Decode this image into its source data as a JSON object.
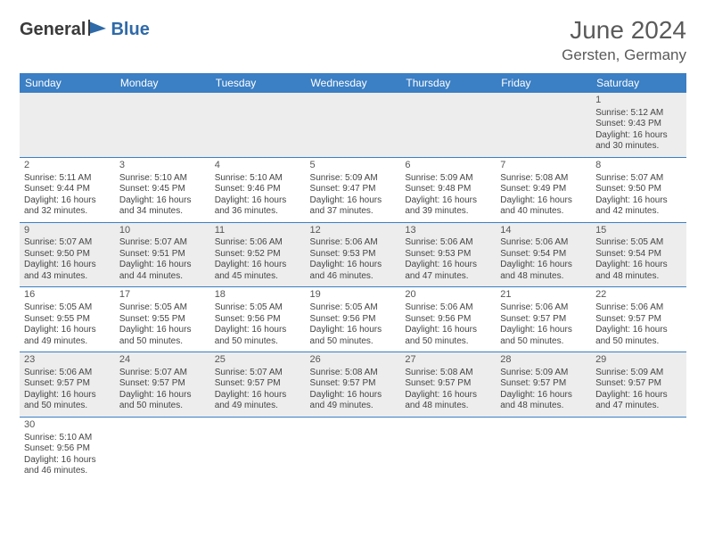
{
  "brand": {
    "part1": "General",
    "part2": "Blue"
  },
  "title": "June 2024",
  "location": "Gersten, Germany",
  "colors": {
    "header_bg": "#3b7fc4",
    "header_fg": "#ffffff",
    "row_alt_bg": "#ededed",
    "row_bg": "#ffffff",
    "border": "#3b7fc4",
    "text": "#444444",
    "title_color": "#5a5a5a",
    "brand_gray": "#3a3a3a",
    "brand_blue": "#2f6aa8"
  },
  "day_headers": [
    "Sunday",
    "Monday",
    "Tuesday",
    "Wednesday",
    "Thursday",
    "Friday",
    "Saturday"
  ],
  "weeks": [
    [
      null,
      null,
      null,
      null,
      null,
      null,
      {
        "n": "1",
        "sr": "Sunrise: 5:12 AM",
        "ss": "Sunset: 9:43 PM",
        "dl1": "Daylight: 16 hours",
        "dl2": "and 30 minutes."
      }
    ],
    [
      {
        "n": "2",
        "sr": "Sunrise: 5:11 AM",
        "ss": "Sunset: 9:44 PM",
        "dl1": "Daylight: 16 hours",
        "dl2": "and 32 minutes."
      },
      {
        "n": "3",
        "sr": "Sunrise: 5:10 AM",
        "ss": "Sunset: 9:45 PM",
        "dl1": "Daylight: 16 hours",
        "dl2": "and 34 minutes."
      },
      {
        "n": "4",
        "sr": "Sunrise: 5:10 AM",
        "ss": "Sunset: 9:46 PM",
        "dl1": "Daylight: 16 hours",
        "dl2": "and 36 minutes."
      },
      {
        "n": "5",
        "sr": "Sunrise: 5:09 AM",
        "ss": "Sunset: 9:47 PM",
        "dl1": "Daylight: 16 hours",
        "dl2": "and 37 minutes."
      },
      {
        "n": "6",
        "sr": "Sunrise: 5:09 AM",
        "ss": "Sunset: 9:48 PM",
        "dl1": "Daylight: 16 hours",
        "dl2": "and 39 minutes."
      },
      {
        "n": "7",
        "sr": "Sunrise: 5:08 AM",
        "ss": "Sunset: 9:49 PM",
        "dl1": "Daylight: 16 hours",
        "dl2": "and 40 minutes."
      },
      {
        "n": "8",
        "sr": "Sunrise: 5:07 AM",
        "ss": "Sunset: 9:50 PM",
        "dl1": "Daylight: 16 hours",
        "dl2": "and 42 minutes."
      }
    ],
    [
      {
        "n": "9",
        "sr": "Sunrise: 5:07 AM",
        "ss": "Sunset: 9:50 PM",
        "dl1": "Daylight: 16 hours",
        "dl2": "and 43 minutes."
      },
      {
        "n": "10",
        "sr": "Sunrise: 5:07 AM",
        "ss": "Sunset: 9:51 PM",
        "dl1": "Daylight: 16 hours",
        "dl2": "and 44 minutes."
      },
      {
        "n": "11",
        "sr": "Sunrise: 5:06 AM",
        "ss": "Sunset: 9:52 PM",
        "dl1": "Daylight: 16 hours",
        "dl2": "and 45 minutes."
      },
      {
        "n": "12",
        "sr": "Sunrise: 5:06 AM",
        "ss": "Sunset: 9:53 PM",
        "dl1": "Daylight: 16 hours",
        "dl2": "and 46 minutes."
      },
      {
        "n": "13",
        "sr": "Sunrise: 5:06 AM",
        "ss": "Sunset: 9:53 PM",
        "dl1": "Daylight: 16 hours",
        "dl2": "and 47 minutes."
      },
      {
        "n": "14",
        "sr": "Sunrise: 5:06 AM",
        "ss": "Sunset: 9:54 PM",
        "dl1": "Daylight: 16 hours",
        "dl2": "and 48 minutes."
      },
      {
        "n": "15",
        "sr": "Sunrise: 5:05 AM",
        "ss": "Sunset: 9:54 PM",
        "dl1": "Daylight: 16 hours",
        "dl2": "and 48 minutes."
      }
    ],
    [
      {
        "n": "16",
        "sr": "Sunrise: 5:05 AM",
        "ss": "Sunset: 9:55 PM",
        "dl1": "Daylight: 16 hours",
        "dl2": "and 49 minutes."
      },
      {
        "n": "17",
        "sr": "Sunrise: 5:05 AM",
        "ss": "Sunset: 9:55 PM",
        "dl1": "Daylight: 16 hours",
        "dl2": "and 50 minutes."
      },
      {
        "n": "18",
        "sr": "Sunrise: 5:05 AM",
        "ss": "Sunset: 9:56 PM",
        "dl1": "Daylight: 16 hours",
        "dl2": "and 50 minutes."
      },
      {
        "n": "19",
        "sr": "Sunrise: 5:05 AM",
        "ss": "Sunset: 9:56 PM",
        "dl1": "Daylight: 16 hours",
        "dl2": "and 50 minutes."
      },
      {
        "n": "20",
        "sr": "Sunrise: 5:06 AM",
        "ss": "Sunset: 9:56 PM",
        "dl1": "Daylight: 16 hours",
        "dl2": "and 50 minutes."
      },
      {
        "n": "21",
        "sr": "Sunrise: 5:06 AM",
        "ss": "Sunset: 9:57 PM",
        "dl1": "Daylight: 16 hours",
        "dl2": "and 50 minutes."
      },
      {
        "n": "22",
        "sr": "Sunrise: 5:06 AM",
        "ss": "Sunset: 9:57 PM",
        "dl1": "Daylight: 16 hours",
        "dl2": "and 50 minutes."
      }
    ],
    [
      {
        "n": "23",
        "sr": "Sunrise: 5:06 AM",
        "ss": "Sunset: 9:57 PM",
        "dl1": "Daylight: 16 hours",
        "dl2": "and 50 minutes."
      },
      {
        "n": "24",
        "sr": "Sunrise: 5:07 AM",
        "ss": "Sunset: 9:57 PM",
        "dl1": "Daylight: 16 hours",
        "dl2": "and 50 minutes."
      },
      {
        "n": "25",
        "sr": "Sunrise: 5:07 AM",
        "ss": "Sunset: 9:57 PM",
        "dl1": "Daylight: 16 hours",
        "dl2": "and 49 minutes."
      },
      {
        "n": "26",
        "sr": "Sunrise: 5:08 AM",
        "ss": "Sunset: 9:57 PM",
        "dl1": "Daylight: 16 hours",
        "dl2": "and 49 minutes."
      },
      {
        "n": "27",
        "sr": "Sunrise: 5:08 AM",
        "ss": "Sunset: 9:57 PM",
        "dl1": "Daylight: 16 hours",
        "dl2": "and 48 minutes."
      },
      {
        "n": "28",
        "sr": "Sunrise: 5:09 AM",
        "ss": "Sunset: 9:57 PM",
        "dl1": "Daylight: 16 hours",
        "dl2": "and 48 minutes."
      },
      {
        "n": "29",
        "sr": "Sunrise: 5:09 AM",
        "ss": "Sunset: 9:57 PM",
        "dl1": "Daylight: 16 hours",
        "dl2": "and 47 minutes."
      }
    ],
    [
      {
        "n": "30",
        "sr": "Sunrise: 5:10 AM",
        "ss": "Sunset: 9:56 PM",
        "dl1": "Daylight: 16 hours",
        "dl2": "and 46 minutes."
      },
      null,
      null,
      null,
      null,
      null,
      null
    ]
  ]
}
